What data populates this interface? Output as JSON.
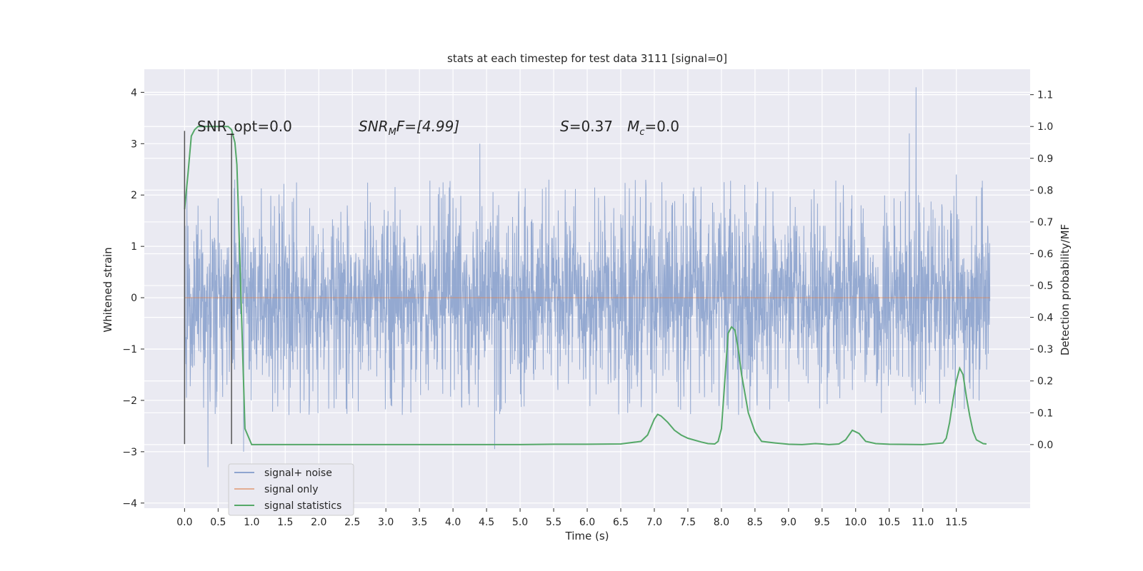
{
  "chart_data": {
    "type": "line",
    "title": "stats at each timestep for test data 3111 [signal=0]",
    "xlabel": "Time (s)",
    "ylabel": "Whitened strain",
    "ylabel_right": "Detection probability/MF",
    "xlim": [
      -0.6,
      12.6
    ],
    "ylim": [
      -4.1,
      4.45
    ],
    "ylim_right": [
      -0.2,
      1.18
    ],
    "x_ticks": [
      0.0,
      0.5,
      1.0,
      1.5,
      2.0,
      2.5,
      3.0,
      3.5,
      4.0,
      4.5,
      5.0,
      5.5,
      6.0,
      6.5,
      7.0,
      7.5,
      8.0,
      8.5,
      9.0,
      9.5,
      10.0,
      10.5,
      11.0,
      11.5
    ],
    "x_tick_labels": [
      "0.0",
      "0.5",
      "1.0",
      "1.5",
      "2.0",
      "2.5",
      "3.0",
      "3.5",
      "4.0",
      "4.5",
      "5.0",
      "5.5",
      "6.0",
      "6.5",
      "7.0",
      "7.5",
      "8.0",
      "8.5",
      "9.0",
      "9.5",
      "10.0",
      "10.5",
      "11.0",
      "11.5"
    ],
    "y_ticks": [
      -4,
      -3,
      -2,
      -1,
      0,
      1,
      2,
      3,
      4
    ],
    "y_tick_labels": [
      "−4",
      "−3",
      "−2",
      "−1",
      "0",
      "1",
      "2",
      "3",
      "4"
    ],
    "y_ticks_right": [
      0.0,
      0.1,
      0.2,
      0.3,
      0.4,
      0.5,
      0.6,
      0.7,
      0.8,
      0.9,
      1.0,
      1.1
    ],
    "y_tick_labels_right": [
      "0.0",
      "0.1",
      "0.2",
      "0.3",
      "0.4",
      "0.5",
      "0.6",
      "0.7",
      "0.8",
      "0.9",
      "1.0",
      "1.1"
    ],
    "grid": true,
    "legend_position": "lower-left",
    "annotations": {
      "snr_opt": "SNR_opt=0.0",
      "snr_mf_main": "SNR",
      "snr_mf_sub": "M",
      "snr_mf_tail": "F=[4.99]",
      "s_main": "S",
      "s_tail": "=0.37",
      "mc_main": "M",
      "mc_sub": "c",
      "mc_tail": "=0.0"
    },
    "series": [
      {
        "name": "signal+ noise",
        "color": "#8fa5cf",
        "duration_s": 12.0,
        "bulk_amplitude": 1.4,
        "peaks": [
          [
            0.35,
            -3.3
          ],
          [
            0.75,
            2.3
          ],
          [
            0.88,
            -3.0
          ],
          [
            4.4,
            3.0
          ],
          [
            4.62,
            -2.95
          ],
          [
            10.9,
            4.1
          ],
          [
            10.8,
            3.2
          ],
          [
            11.5,
            2.4
          ]
        ]
      },
      {
        "name": "signal only",
        "color": "#dd8452",
        "x": [
          0.0,
          12.0
        ],
        "y": [
          0.0,
          0.0
        ]
      },
      {
        "name": "signal statistics",
        "color": "#55a868",
        "axis": "right",
        "x": [
          0.0,
          0.05,
          0.1,
          0.15,
          0.2,
          0.3,
          0.4,
          0.5,
          0.6,
          0.65,
          0.7,
          0.75,
          0.78,
          0.8,
          0.85,
          0.9,
          1.0,
          1.5,
          2.0,
          3.0,
          4.0,
          5.0,
          5.5,
          6.0,
          6.5,
          6.8,
          6.9,
          7.0,
          7.05,
          7.1,
          7.2,
          7.3,
          7.4,
          7.5,
          7.7,
          7.8,
          7.9,
          7.95,
          8.0,
          8.05,
          8.1,
          8.15,
          8.2,
          8.25,
          8.3,
          8.4,
          8.5,
          8.6,
          8.8,
          9.0,
          9.2,
          9.4,
          9.5,
          9.6,
          9.75,
          9.85,
          9.95,
          10.05,
          10.15,
          10.3,
          10.5,
          11.0,
          11.3,
          11.35,
          11.4,
          11.45,
          11.5,
          11.55,
          11.6,
          11.65,
          11.7,
          11.75,
          11.8,
          11.9,
          11.95
        ],
        "y": [
          0.74,
          0.85,
          0.97,
          0.99,
          1.0,
          1.0,
          1.0,
          1.0,
          1.0,
          1.0,
          0.99,
          0.95,
          0.88,
          0.75,
          0.4,
          0.05,
          0.0,
          0.0,
          0.0,
          0.0,
          0.0,
          0.0,
          0.001,
          0.001,
          0.002,
          0.01,
          0.03,
          0.08,
          0.095,
          0.09,
          0.07,
          0.045,
          0.03,
          0.02,
          0.008,
          0.003,
          0.002,
          0.01,
          0.05,
          0.2,
          0.35,
          0.37,
          0.36,
          0.3,
          0.22,
          0.1,
          0.04,
          0.01,
          0.005,
          0.001,
          0.0,
          0.003,
          0.002,
          0.0,
          0.002,
          0.015,
          0.045,
          0.035,
          0.01,
          0.003,
          0.001,
          0.0,
          0.005,
          0.02,
          0.07,
          0.14,
          0.2,
          0.24,
          0.22,
          0.15,
          0.09,
          0.04,
          0.015,
          0.003,
          0.002
        ]
      }
    ],
    "markers": [
      {
        "x": 0.0,
        "y_from": -2.85,
        "y_to": 3.25
      },
      {
        "x": 0.7,
        "y_from": -2.85,
        "y_to": 3.2
      }
    ]
  }
}
